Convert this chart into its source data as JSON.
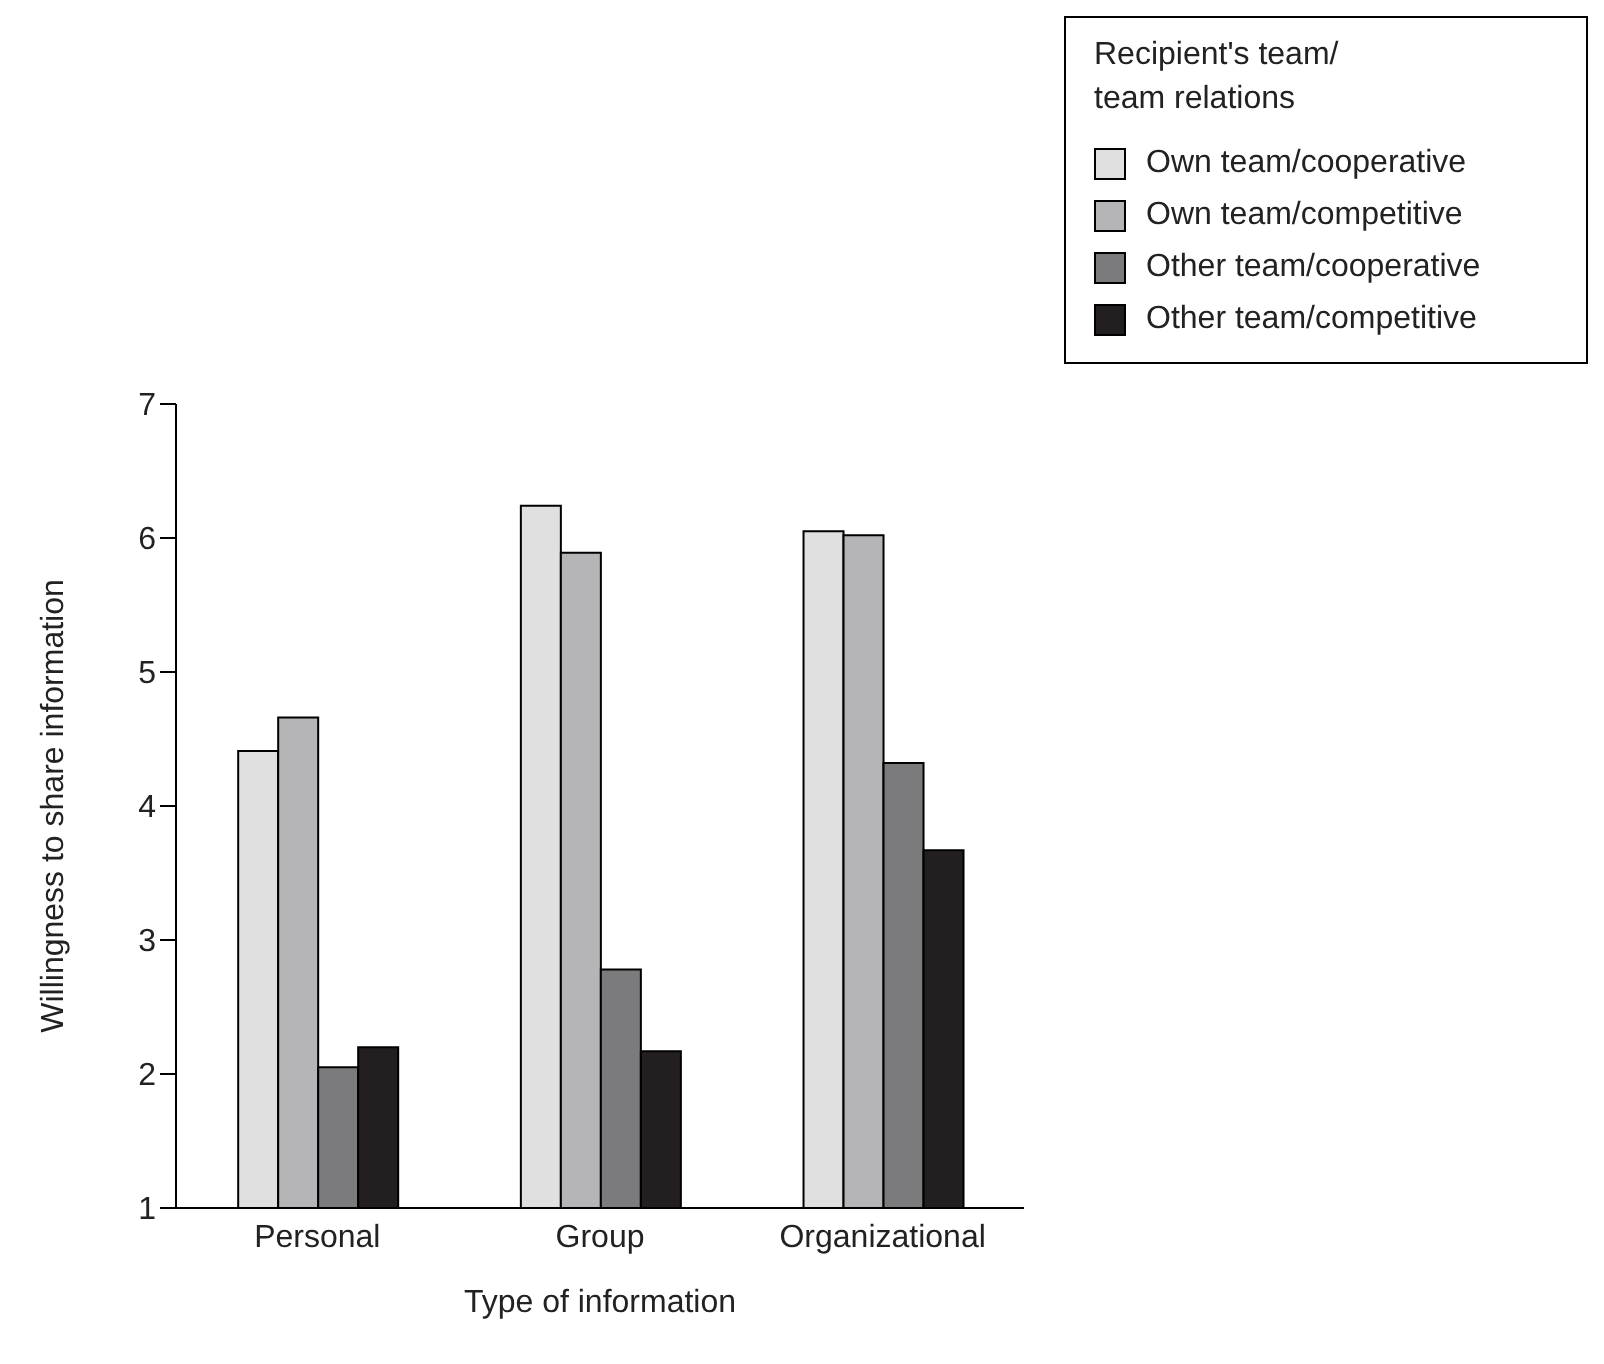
{
  "chart_data": {
    "type": "bar",
    "xlabel": "Type of information",
    "ylabel": "Willingness to share information",
    "legend_title": "Recipient's team/\nteam relations",
    "categories": [
      "Personal",
      "Group",
      "Organizational"
    ],
    "series": [
      {
        "name": "Own team/cooperative",
        "color": "#e0e0e0",
        "values": [
          4.41,
          6.24,
          6.05
        ]
      },
      {
        "name": "Own team/competitive",
        "color": "#b5b5b7",
        "values": [
          4.66,
          5.89,
          6.02
        ]
      },
      {
        "name": "Other team/cooperative",
        "color": "#7b7b7d",
        "values": [
          2.05,
          2.78,
          4.32
        ]
      },
      {
        "name": "Other team/competitive",
        "color": "#231f20",
        "values": [
          2.2,
          2.17,
          3.67
        ]
      }
    ],
    "ylim": [
      1,
      7
    ],
    "yticks": [
      1,
      2,
      3,
      4,
      5,
      6,
      7
    ],
    "grid": false,
    "legend": "top right"
  }
}
